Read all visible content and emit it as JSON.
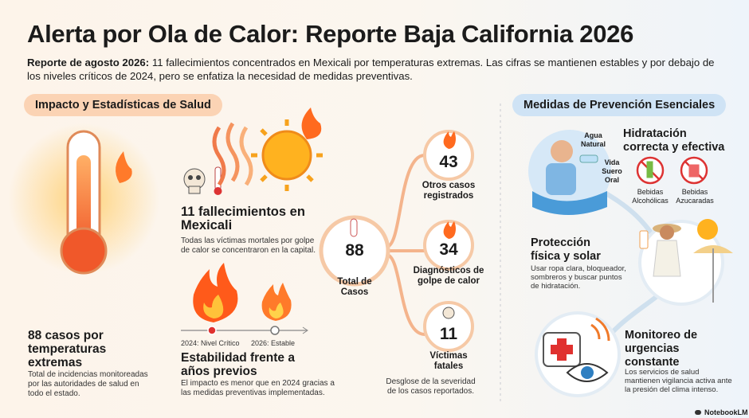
{
  "header": {
    "title": "Alerta por Ola de Calor: Reporte Baja California 2026",
    "lead": "Reporte de agosto 2026:",
    "summary": "11 fallecimientos concentrados en Mexicali por temperaturas extremas. Las cifras se mantienen estables y por debajo de los niveles críticos de 2024, pero se enfatiza la necesidad de medidas preventivas."
  },
  "impact": {
    "heading": "Impacto y Estadísticas de Salud",
    "cases": {
      "title": "88 casos por temperaturas extremas",
      "text": "Total de incidencias monitoreadas por las autoridades de salud en todo el estado."
    },
    "deaths": {
      "title": "11 fallecimientos en Mexicali",
      "text": "Todas las víctimas mortales por golpe de calor se concentraron en la capital."
    },
    "timeline": [
      "2024: Nivel Crítico",
      "2026: Estable"
    ],
    "stability": {
      "title": "Estabilidad frente a años previos",
      "text": "El impacto es menor que en 2024 gracias a las medidas preventivas implementadas."
    },
    "breakdown": {
      "total": {
        "value": 88,
        "label": "Total de Casos"
      },
      "branches": [
        {
          "value": 43,
          "label": "Otros casos registrados"
        },
        {
          "value": 34,
          "label": "Diagnósticos de golpe de calor"
        },
        {
          "value": 11,
          "label": "Víctimas fatales"
        }
      ],
      "caption": "Desglose de la severidad de los casos reportados."
    }
  },
  "prevention": {
    "heading": "Medidas de Prevención Esenciales",
    "hydration": {
      "title": "Hidratación correcta y efectiva",
      "drinks": [
        "Agua Natural",
        "Vida Suero Oral"
      ],
      "avoid": [
        "Bebidas Alcohólicas",
        "Bebidas Azucaradas"
      ]
    },
    "protection": {
      "title": "Protección física y solar",
      "text": "Usar ropa clara, bloqueador, sombreros y buscar puntos de hidratación."
    },
    "monitoring": {
      "title": "Monitoreo de urgencias constante",
      "text": "Los servicios de salud mantienen vigilancia activa ante la presión del clima intenso."
    }
  },
  "footer": {
    "brand": "NotebookLM"
  }
}
